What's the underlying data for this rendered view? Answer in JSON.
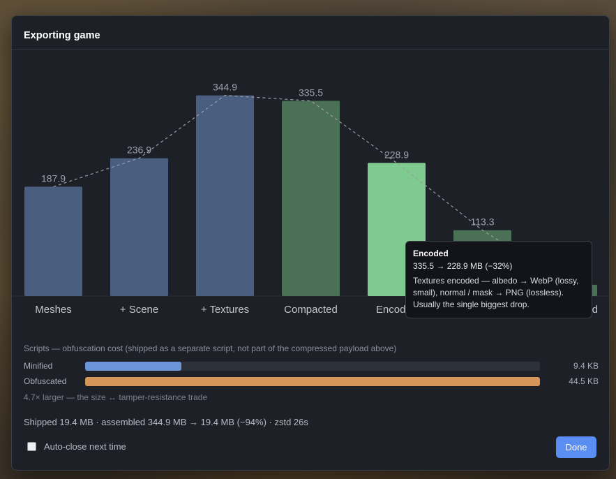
{
  "window": {
    "title": "Exporting game"
  },
  "chart_data": {
    "type": "bar",
    "categories": [
      "Meshes",
      "+ Scene",
      "+ Textures",
      "Compacted",
      "Encoded",
      "",
      "Compressed"
    ],
    "values": [
      187.9,
      236.9,
      344.9,
      335.5,
      228.9,
      113.3,
      19.4
    ],
    "value_labels": [
      "187.9",
      "236.9",
      "344.9",
      "335.5",
      "228.9",
      "113.3",
      ""
    ],
    "bar_colors": [
      "#4a5e80",
      "#4a5e80",
      "#4a5e80",
      "#4a7055",
      "#7fca8f",
      "#4a7055",
      "#4a7055"
    ],
    "ylim": [
      0,
      360
    ],
    "trend_line": "dashed",
    "title": "",
    "xlabel": "",
    "ylabel": ""
  },
  "tooltip": {
    "title": "Encoded",
    "subtitle": "335.5 → 228.9 MB (−32%)",
    "body": "Textures encoded — albedo → WebP (lossy, small), normal / mask → PNG (lossless). Usually the single biggest drop."
  },
  "scripts": {
    "title": "Scripts — obfuscation cost (shipped as a separate script, not part of the compressed payload above)",
    "rows": [
      {
        "label": "Minified",
        "value": "9.4 KB",
        "fraction": 0.211,
        "color": "#6b95d6"
      },
      {
        "label": "Obfuscated",
        "value": "44.5 KB",
        "fraction": 1.0,
        "color": "#d69558"
      }
    ],
    "note": "4.7× larger — the size ↔ tamper-resistance trade"
  },
  "summary": "Shipped 19.4 MB · assembled 344.9 MB → 19.4 MB (−94%) · zstd 26s",
  "footer": {
    "auto_close_label": "Auto-close next time",
    "auto_close_checked": false,
    "done_label": "Done"
  }
}
